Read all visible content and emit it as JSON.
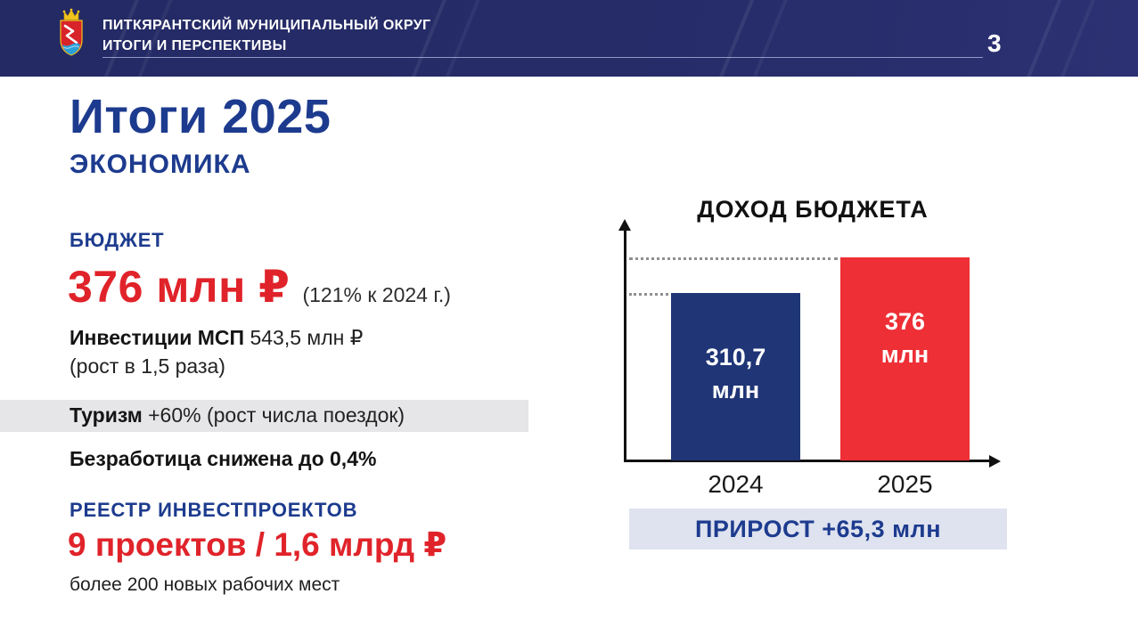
{
  "header": {
    "org_line1": "ПИТКЯРАНТСКИЙ МУНИЦИПАЛЬНЫЙ ОКРУГ",
    "org_line2": "ИТОГИ И ПЕРСПЕКТИВЫ",
    "page_number": "3"
  },
  "main": {
    "title": "Итоги 2025",
    "subtitle": "ЭКОНОМИКА",
    "budget_label": "БЮДЖЕТ",
    "budget_value": "376 млн ₽",
    "budget_note": "(121% к 2024 г.)",
    "msp_label": "Инвестиции МСП",
    "msp_value": " 543,5 млн ₽",
    "msp_note": "(рост в 1,5 раза)",
    "tourism_label": "Туризм",
    "tourism_value": " +60% (рост числа поездок)",
    "unemployment": "Безработица снижена до 0,4%",
    "registry_label": "РЕЕСТР ИНВЕСТПРОЕКТОВ",
    "registry_value": "9 проектов / 1,6 млрд ₽",
    "registry_note": "более 200 новых рабочих мест"
  },
  "chart_data": {
    "type": "bar",
    "title": "ДОХОД БЮДЖЕТА",
    "categories": [
      "2024",
      "2025"
    ],
    "values": [
      310.7,
      376
    ],
    "unit": "млн",
    "bar_labels": [
      "310,7",
      "376"
    ],
    "bar_colors": [
      "#1f3576",
      "#ee2f35"
    ],
    "ylim": [
      0,
      376
    ],
    "legend": "none",
    "grid": "dotted guide lines at each bar top",
    "annotation": "ПРИРОСТ +65,3 млн"
  },
  "colors": {
    "accent_blue": "#1d3b8e",
    "accent_red": "#e0232a",
    "header_navy": "#262c68",
    "tourism_band": "#e6e5e7",
    "annotation_band": "#dfe3f0"
  }
}
